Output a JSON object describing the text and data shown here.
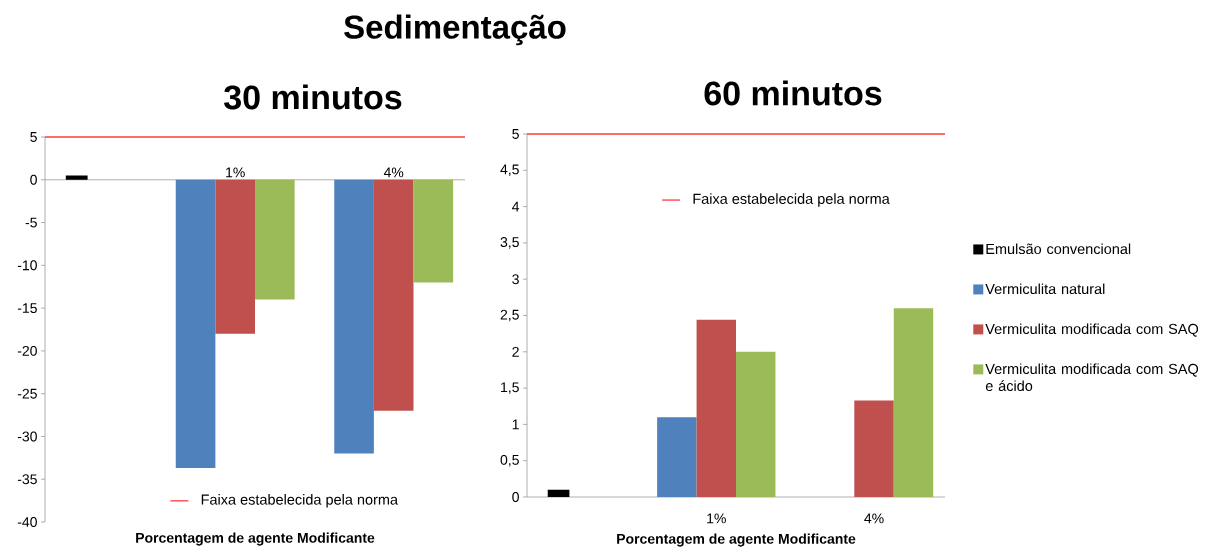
{
  "chart_data": [
    {
      "type": "bar",
      "title": "Sedimentação",
      "subtitle": "30 minutos",
      "xlabel": "Porcentagem de agente Modificante",
      "categories": [
        null,
        "1%",
        "4%"
      ],
      "series": [
        {
          "color": "#000000",
          "values": [
            0.5,
            null,
            null
          ]
        },
        {
          "color": "#4f81bd",
          "values": [
            null,
            -33.7,
            -32
          ]
        },
        {
          "color": "#c0504d",
          "values": [
            null,
            -18,
            -27
          ]
        },
        {
          "color": "#9bbb59",
          "values": [
            null,
            -14,
            -12
          ]
        }
      ],
      "ylim": [
        -40,
        5
      ],
      "yticks": [
        -40,
        -35,
        -30,
        -25,
        -20,
        -15,
        -10,
        -5,
        0,
        5
      ],
      "ref_lines": [
        {
          "axis": "y",
          "value": 5,
          "label": "Faixa estabelecida pela norma",
          "color": "#ff3b3b"
        }
      ]
    },
    {
      "type": "bar",
      "subtitle": "60 minutos",
      "xlabel": "Porcentagem de agente Modificante",
      "categories": [
        null,
        "1%",
        "4%"
      ],
      "series": [
        {
          "name": "Emulsão convencional",
          "color": "#000000",
          "values": [
            0.1,
            null,
            null
          ]
        },
        {
          "name": "Vermiculita natural",
          "color": "#4f81bd",
          "values": [
            null,
            1.1,
            null
          ]
        },
        {
          "name": "Vermiculita modificada com SAQ",
          "color": "#c0504d",
          "values": [
            null,
            2.44,
            1.33
          ]
        },
        {
          "name": "Vermiculita modificada com SAQ e ácido",
          "color": "#9bbb59",
          "values": [
            null,
            2,
            2.6
          ]
        }
      ],
      "ylim": [
        0,
        5
      ],
      "yticks": [
        0,
        {
          "value": 0.5,
          "label": "0,5"
        },
        1,
        {
          "value": 1.5,
          "label": "1,5"
        },
        2,
        {
          "value": 2.5,
          "label": "2,5"
        },
        3,
        {
          "value": 3.5,
          "label": "3,5"
        },
        4,
        {
          "value": 4.5,
          "label": "4,5"
        },
        5
      ],
      "legend": "right",
      "ref_lines": [
        {
          "axis": "y",
          "value": 5,
          "label": "Faixa estabelecida pela norma",
          "color": "#ff3b3b"
        }
      ]
    }
  ]
}
